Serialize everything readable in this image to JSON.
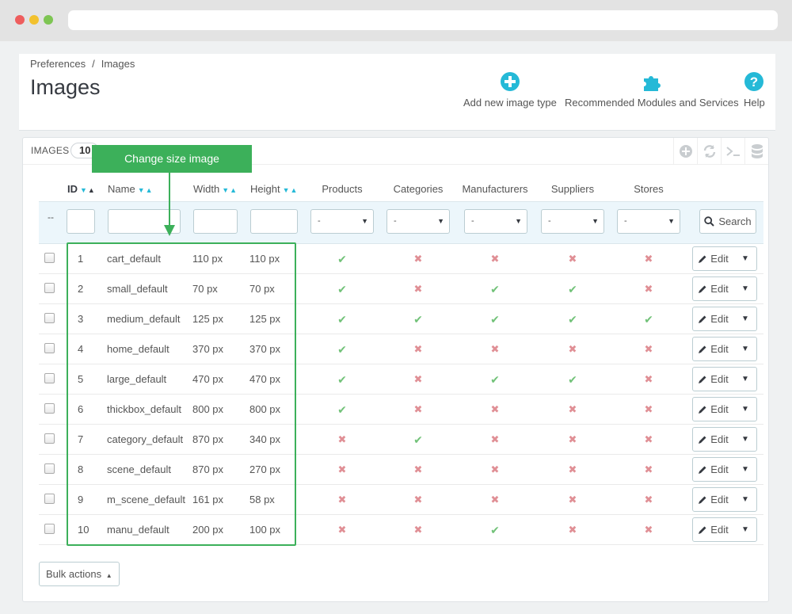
{
  "breadcrumb": {
    "parent": "Preferences",
    "separator": "/",
    "current": "Images"
  },
  "page_title": "Images",
  "toolbar": {
    "add_new": "Add new image type",
    "recommended": "Recommended Modules and Services",
    "help": "Help"
  },
  "panel": {
    "title": "IMAGES",
    "count": "10"
  },
  "columns": {
    "id": "ID",
    "name": "Name",
    "width": "Width",
    "height": "Height",
    "products": "Products",
    "categories": "Categories",
    "manufacturers": "Manufacturers",
    "suppliers": "Suppliers",
    "stores": "Stores"
  },
  "filters": {
    "dash": "--",
    "select_default": "-",
    "search_label": "Search"
  },
  "rows": [
    {
      "id": "1",
      "name": "cart_default",
      "width": "110 px",
      "height": "110 px",
      "products": true,
      "categories": false,
      "manufacturers": false,
      "suppliers": false,
      "stores": false
    },
    {
      "id": "2",
      "name": "small_default",
      "width": "70 px",
      "height": "70 px",
      "products": true,
      "categories": false,
      "manufacturers": true,
      "suppliers": true,
      "stores": false
    },
    {
      "id": "3",
      "name": "medium_default",
      "width": "125 px",
      "height": "125 px",
      "products": true,
      "categories": true,
      "manufacturers": true,
      "suppliers": true,
      "stores": true
    },
    {
      "id": "4",
      "name": "home_default",
      "width": "370 px",
      "height": "370 px",
      "products": true,
      "categories": false,
      "manufacturers": false,
      "suppliers": false,
      "stores": false
    },
    {
      "id": "5",
      "name": "large_default",
      "width": "470 px",
      "height": "470 px",
      "products": true,
      "categories": false,
      "manufacturers": true,
      "suppliers": true,
      "stores": false
    },
    {
      "id": "6",
      "name": "thickbox_default",
      "width": "800 px",
      "height": "800 px",
      "products": true,
      "categories": false,
      "manufacturers": false,
      "suppliers": false,
      "stores": false
    },
    {
      "id": "7",
      "name": "category_default",
      "width": "870 px",
      "height": "340 px",
      "products": false,
      "categories": true,
      "manufacturers": false,
      "suppliers": false,
      "stores": false
    },
    {
      "id": "8",
      "name": "scene_default",
      "width": "870 px",
      "height": "270 px",
      "products": false,
      "categories": false,
      "manufacturers": false,
      "suppliers": false,
      "stores": false
    },
    {
      "id": "9",
      "name": "m_scene_default",
      "width": "161 px",
      "height": "58 px",
      "products": false,
      "categories": false,
      "manufacturers": false,
      "suppliers": false,
      "stores": false
    },
    {
      "id": "10",
      "name": "manu_default",
      "width": "200 px",
      "height": "100 px",
      "products": false,
      "categories": false,
      "manufacturers": true,
      "suppliers": false,
      "stores": false
    }
  ],
  "row_action": {
    "edit_label": "Edit"
  },
  "bulk_actions": "Bulk actions",
  "annotation": {
    "callout": "Change size image"
  },
  "colors": {
    "accent": "#25b9d7",
    "check_green": "#72c279",
    "cross_red": "#e08f95",
    "annotation_green": "#3cb05a"
  }
}
